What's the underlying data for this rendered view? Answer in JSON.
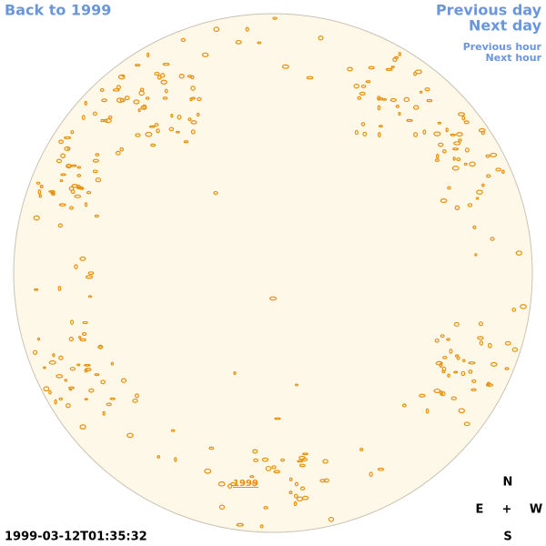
{
  "navigation": {
    "back": "Back to 1999",
    "previous_day": "Previous day",
    "next_day": "Next day",
    "previous_hour": "Previous hour",
    "next_hour": "Next hour"
  },
  "disk": {
    "year_link": "1999"
  },
  "compass": {
    "north": "N",
    "east": "E",
    "center": "+",
    "west": "W",
    "south": "S"
  },
  "timestamp": "1999-03-12T01:35:32"
}
